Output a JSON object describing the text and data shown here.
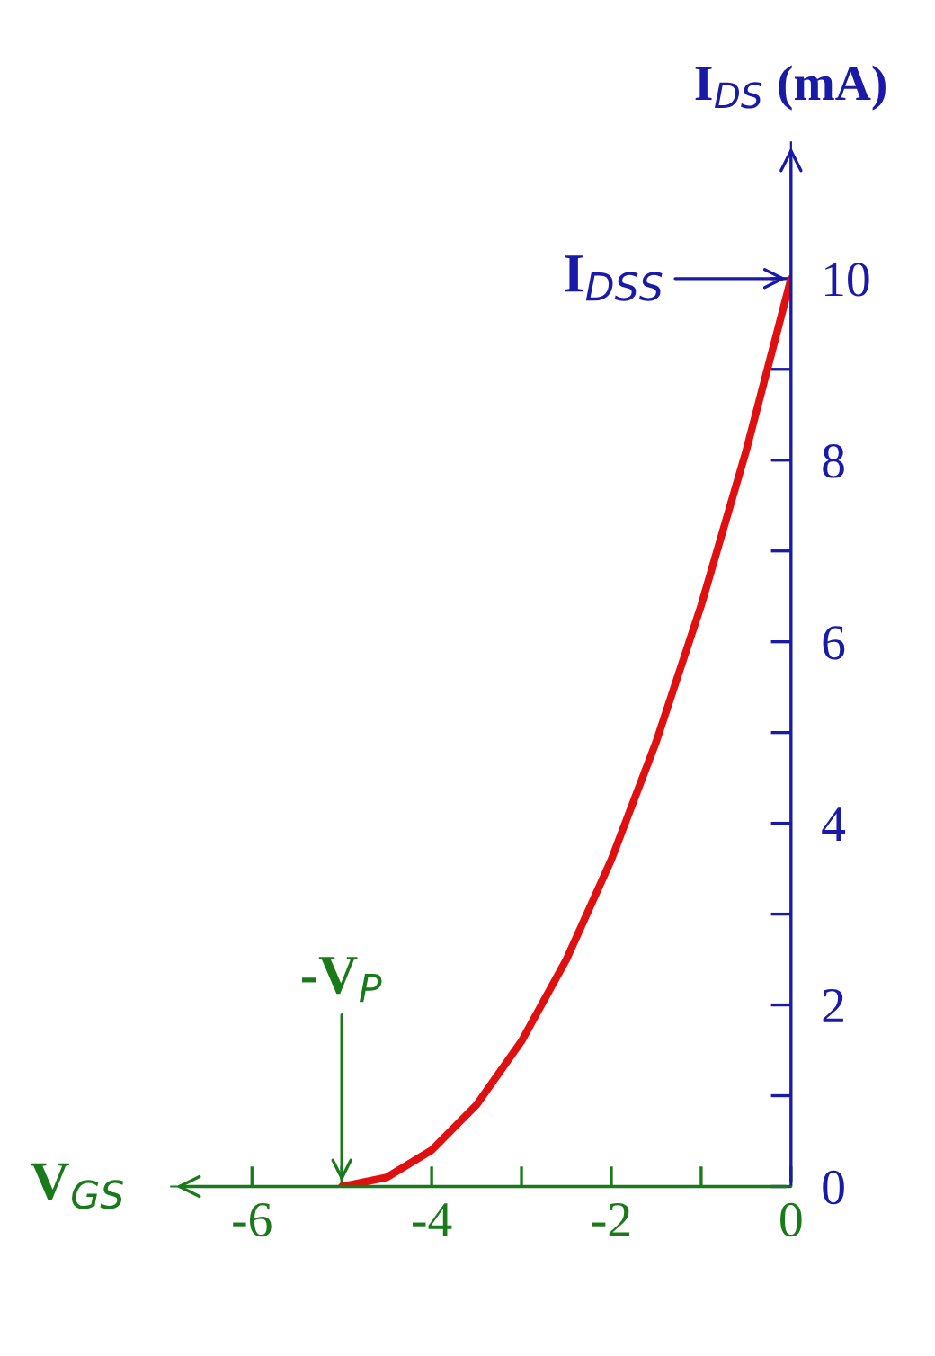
{
  "chart_data": {
    "type": "line",
    "xlabel": "V$_{GS}$",
    "ylabel": "I$_{DS}$ (mA)",
    "x": [
      -5,
      -4.5,
      -4,
      -3.5,
      -3,
      -2.5,
      -2,
      -1.5,
      -1,
      -0.5,
      0
    ],
    "series": [
      {
        "color": "#e01010",
        "values": [
          0,
          0.1,
          0.4,
          0.9,
          1.6,
          2.5,
          3.6,
          4.9,
          6.4,
          8.1,
          10
        ]
      }
    ],
    "xlim": [
      -6.9,
      0
    ],
    "ylim": [
      0,
      11.5
    ],
    "xticks": [
      -6,
      {
        "value": -5,
        "label": null
      },
      -4,
      {
        "value": -3,
        "label": null
      },
      -2,
      {
        "value": -1,
        "label": null
      },
      0
    ],
    "yticks": [
      0,
      {
        "value": 1,
        "label": null
      },
      2,
      {
        "value": 3,
        "label": null
      },
      4,
      {
        "value": 5,
        "label": null
      },
      6,
      {
        "value": 7,
        "label": null
      },
      8,
      {
        "value": 9,
        "label": null
      },
      10
    ],
    "annotations": [
      {
        "text": "I$_{DSS}$",
        "x": 0,
        "y": 10
      },
      {
        "text": "-V$_{P}$",
        "x": -5,
        "y": 0
      }
    ],
    "grid": false,
    "marker": "none",
    "line_style": "solid"
  }
}
